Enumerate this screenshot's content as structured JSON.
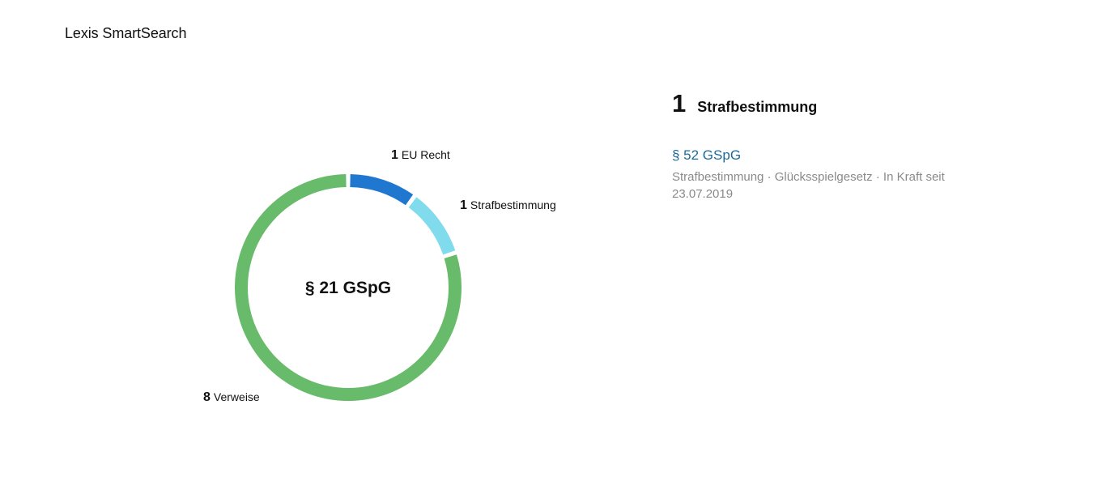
{
  "app": {
    "title": "Lexis SmartSearch"
  },
  "chart_data": {
    "type": "pie",
    "center_label": "§ 21 GSpG",
    "series": [
      {
        "name": "EU Recht",
        "value": 1,
        "color": "#1f77d0"
      },
      {
        "name": "Strafbestimmung",
        "value": 1,
        "color": "#80dcec"
      },
      {
        "name": "Verweise",
        "value": 8,
        "color": "#68bb6a"
      }
    ]
  },
  "labels": {
    "eu_recht": {
      "count": "1",
      "text": "EU Recht"
    },
    "strafbestimmung": {
      "count": "1",
      "text": "Strafbestimmung"
    },
    "verweise": {
      "count": "8",
      "text": "Verweise"
    }
  },
  "results": {
    "count": "1",
    "title": "Strafbestimmung",
    "items": [
      {
        "link": "§ 52 GSpG",
        "meta": "Strafbestimmung · Glücksspielgesetz · In Kraft seit 23.07.2019"
      }
    ]
  }
}
